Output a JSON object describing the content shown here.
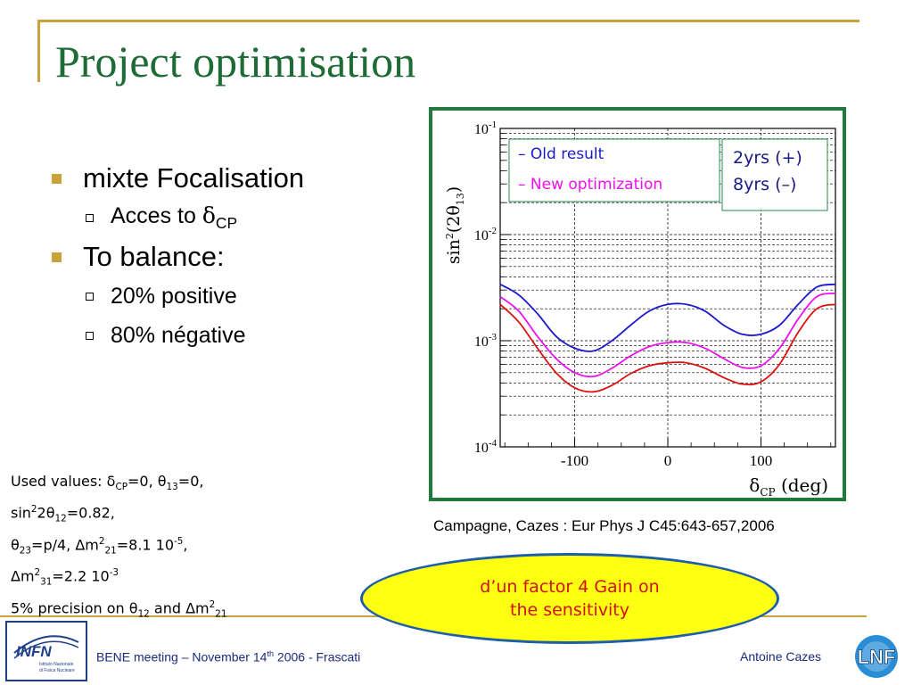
{
  "slide": {
    "title": "Project optimisation",
    "bullets": [
      {
        "text": "mixte Focalisation"
      },
      {
        "pre": "Acces to ",
        "greek": "δ",
        "sub": "CP"
      },
      {
        "text": "To balance:"
      },
      {
        "text": "20% positive"
      },
      {
        "text": "80% négative"
      }
    ],
    "reference": "Campagne, Cazes : Eur Phys J C45:643-657,2006",
    "used_values": {
      "label": "Used values: ",
      "line1": {
        "d": "δ",
        "dsub": "CP",
        "deq": "=0, ",
        "t": "θ",
        "tsub": "13",
        "teq": "=0,"
      },
      "line2": {
        "a": "sin",
        "asup": "2",
        "b": "2θ",
        "bsub": "12",
        "eq": "=0.82,"
      },
      "line3": {
        "t": "θ",
        "tsub": "23",
        "teq": "=p/4, ",
        "m": "Δm",
        "msup": "2",
        "msub": "21",
        "meq": "=8.1 10",
        "exp": "-5",
        "end": ","
      },
      "line4": {
        "m": "Δm",
        "msup": "2",
        "msub": "31",
        "meq": "=2.2 10",
        "exp": "-3"
      },
      "line5": {
        "pct": "5%",
        "txt": " precision on ",
        "t": "θ",
        "tsub": "12",
        "and": " and ",
        "m": "Δm",
        "msup": "2",
        "msub": "21"
      }
    },
    "highlight": {
      "line1": "d’un factor 4 Gain on",
      "line2": "the sensitivity"
    },
    "footer": {
      "left_pre": "BENE meeting – November 14",
      "left_sup": "th",
      "left_post": " 2006 - Frascati",
      "right": "Antoine Cazes"
    },
    "logos": {
      "infn_text": "INFN",
      "infn_sub1": "Istituto Nazionale",
      "infn_sub2": "di Fisica Nucleare",
      "lnf_text": "LNF"
    }
  },
  "chart_data": {
    "type": "line",
    "xlabel": "δCP (deg)",
    "ylabel": "sin²(2θ13)",
    "xlim": [
      -180,
      180
    ],
    "ylim": [
      0.0001,
      0.1
    ],
    "y_scale": "log",
    "x_ticks": [
      -100,
      0,
      100
    ],
    "x_tick_labels": [
      "-100",
      "0",
      "100"
    ],
    "y_ticks": [
      0.0001,
      0.001,
      0.01,
      0.1
    ],
    "y_tick_labels": [
      [
        "10",
        "-4"
      ],
      [
        "10",
        "-3"
      ],
      [
        "10",
        "-2"
      ],
      [
        "10",
        "-1"
      ]
    ],
    "grid": true,
    "legend": {
      "items": [
        "– Old result",
        "– New optimization"
      ],
      "placement": "top-left"
    },
    "note_box": {
      "lines": [
        "2yrs (+)",
        "8yrs (–)"
      ],
      "placement": "top-right"
    },
    "x": [
      -180,
      -160,
      -140,
      -120,
      -100,
      -80,
      -60,
      -40,
      -20,
      0,
      20,
      40,
      60,
      80,
      100,
      120,
      140,
      160,
      180
    ],
    "series": [
      {
        "color": "#1a1acc",
        "values": [
          0.0034,
          0.0027,
          0.0018,
          0.0011,
          0.00085,
          0.0008,
          0.001,
          0.0014,
          0.0019,
          0.0022,
          0.0022,
          0.0019,
          0.0014,
          0.00115,
          0.00115,
          0.0014,
          0.0022,
          0.0032,
          0.0034
        ]
      },
      {
        "color": "#ee10ee",
        "values": [
          0.0026,
          0.0019,
          0.0011,
          0.00068,
          0.0005,
          0.00046,
          0.00055,
          0.00072,
          0.00088,
          0.00096,
          0.00096,
          0.00085,
          0.00068,
          0.00056,
          0.00058,
          0.00085,
          0.0016,
          0.0026,
          0.0028
        ]
      },
      {
        "color": "#dd1111",
        "values": [
          0.0022,
          0.0015,
          0.00085,
          0.0005,
          0.00036,
          0.00033,
          0.00038,
          0.00049,
          0.00058,
          0.00062,
          0.00062,
          0.00055,
          0.00045,
          0.00039,
          0.00041,
          0.0006,
          0.0012,
          0.002,
          0.0022
        ]
      }
    ]
  }
}
